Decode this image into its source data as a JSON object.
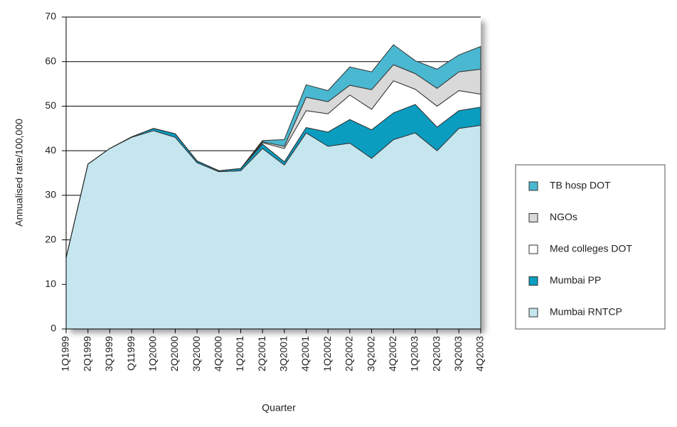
{
  "chart_data": {
    "type": "stacked-area",
    "y_label": "Annualised rate/100,000",
    "x_label": "Quarter",
    "categories": [
      "1Q1999",
      "2Q1999",
      "3Q1999",
      "Q11999",
      "1Q2000",
      "2Q2000",
      "3Q2000",
      "4Q2000",
      "1Q2001",
      "2Q2001",
      "3Q2001",
      "4Q2001",
      "1Q2002",
      "2Q2002",
      "3Q2002",
      "4Q2002",
      "1Q2003",
      "2Q2003",
      "3Q2003",
      "4Q2003"
    ],
    "series": [
      {
        "name": "Mumbai RNTCP",
        "color": "#c5e6ef",
        "values": [
          16,
          37,
          40.5,
          43,
          44.5,
          43,
          37.3,
          35.3,
          35.5,
          40.5,
          36.8,
          44,
          41,
          41.7,
          38.3,
          42.5,
          44,
          40,
          45,
          45.7
        ]
      },
      {
        "name": "Mumbai PP",
        "color": "#0a9dc0",
        "values": [
          0,
          0,
          0,
          0.1,
          0.5,
          0.8,
          0.4,
          0.2,
          0.5,
          1,
          0.7,
          1.2,
          3.2,
          5.3,
          6.4,
          6,
          6.4,
          5.3,
          4,
          4.1
        ]
      },
      {
        "name": "Med colleges DOT",
        "color": "#ffffff",
        "values": [
          0,
          0,
          0,
          0,
          0,
          0,
          0,
          0,
          0,
          0.3,
          3,
          3.8,
          4.1,
          5.5,
          4.6,
          7.2,
          3.4,
          4.7,
          4.5,
          2.9
        ]
      },
      {
        "name": "NGOs",
        "color": "#d9d9d9",
        "values": [
          0,
          0,
          0,
          0,
          0,
          0,
          0,
          0,
          0,
          0.2,
          0.5,
          3,
          2.7,
          2.2,
          4.4,
          3.6,
          3.5,
          4,
          4.2,
          5.6
        ]
      },
      {
        "name": "TB hosp DOT",
        "color": "#4ab8d0",
        "values": [
          0,
          0,
          0,
          0,
          0,
          0,
          0,
          0,
          0,
          0.3,
          1.5,
          2.8,
          2.5,
          4.1,
          4,
          4.5,
          2.9,
          4.3,
          3.8,
          5.1
        ]
      }
    ],
    "ylim": [
      0,
      70
    ],
    "yticks": [
      0,
      10,
      20,
      30,
      40,
      50,
      60,
      70
    ],
    "grid": true,
    "legend": "right"
  }
}
